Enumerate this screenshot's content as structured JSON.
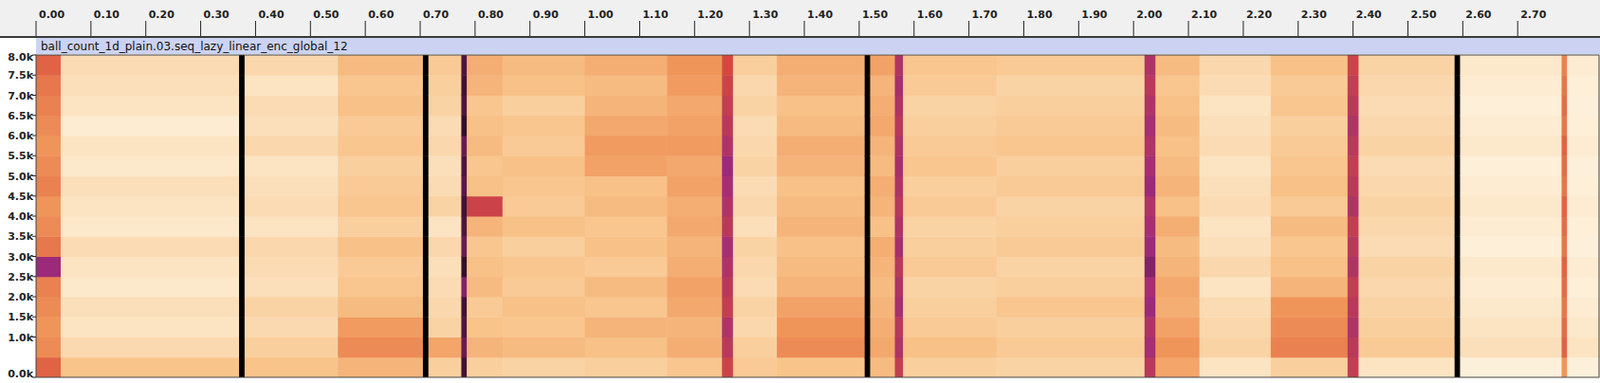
{
  "chart_data": {
    "type": "heatmap",
    "title": "ball_count_1d_plain.03.seq_lazy_linear_enc_global_12",
    "x": [
      0,
      0.045,
      0.37,
      0.38,
      0.55,
      0.705,
      0.715,
      0.775,
      0.785,
      0.85,
      1.0,
      1.15,
      1.25,
      1.27,
      1.35,
      1.51,
      1.52,
      1.565,
      1.58,
      1.75,
      2.02,
      2.04,
      2.12,
      2.25,
      2.39,
      2.41,
      2.585,
      2.595,
      2.78,
      2.79
    ],
    "y": [
      0,
      500,
      1000,
      1500,
      2000,
      2500,
      3000,
      3500,
      4000,
      4500,
      5000,
      5500,
      6000,
      6500,
      7000,
      7500
    ],
    "z": [
      [
        70,
        62,
        60,
        62,
        64,
        88,
        66,
        62,
        60,
        64,
        62,
        60,
        62,
        64,
        66,
        70
      ],
      [
        45,
        35,
        30,
        32,
        28,
        30,
        34,
        28,
        30,
        32,
        28,
        30,
        26,
        30,
        32,
        34
      ],
      [
        100,
        100,
        100,
        100,
        100,
        100,
        100,
        100,
        100,
        100,
        100,
        100,
        100,
        100,
        100,
        100
      ],
      [
        45,
        40,
        35,
        38,
        32,
        34,
        36,
        30,
        34,
        32,
        30,
        36,
        32,
        34,
        30,
        36
      ],
      [
        50,
        62,
        58,
        48,
        44,
        42,
        46,
        40,
        44,
        42,
        40,
        44,
        42,
        46,
        44,
        48
      ],
      [
        100,
        100,
        100,
        100,
        100,
        100,
        100,
        100,
        100,
        100,
        100,
        100,
        100,
        100,
        100,
        100
      ],
      [
        40,
        55,
        38,
        36,
        34,
        32,
        36,
        30,
        38,
        34,
        32,
        36,
        34,
        38,
        40,
        42
      ],
      [
        95,
        92,
        94,
        95,
        90,
        96,
        92,
        94,
        95,
        93,
        94,
        92,
        96,
        94,
        95,
        94
      ],
      [
        40,
        50,
        45,
        42,
        48,
        46,
        44,
        50,
        78,
        46,
        44,
        48,
        46,
        44,
        50,
        52
      ],
      [
        38,
        48,
        44,
        46,
        42,
        44,
        40,
        46,
        42,
        44,
        46,
        42,
        44,
        40,
        46,
        48
      ],
      [
        40,
        46,
        50,
        44,
        48,
        42,
        46,
        44,
        48,
        46,
        56,
        58,
        54,
        50,
        48,
        52
      ],
      [
        44,
        52,
        50,
        54,
        56,
        52,
        50,
        54,
        52,
        56,
        54,
        58,
        56,
        54,
        58,
        60
      ],
      [
        78,
        82,
        84,
        80,
        82,
        84,
        86,
        82,
        84,
        86,
        88,
        84,
        82,
        80,
        78,
        76
      ],
      [
        42,
        40,
        36,
        38,
        34,
        36,
        38,
        32,
        36,
        34,
        38,
        36,
        34,
        38,
        36,
        40
      ],
      [
        45,
        62,
        60,
        56,
        50,
        48,
        46,
        50,
        48,
        46,
        50,
        52,
        48,
        46,
        50,
        52
      ],
      [
        100,
        100,
        100,
        100,
        100,
        100,
        100,
        100,
        100,
        100,
        100,
        100,
        100,
        100,
        100,
        100
      ],
      [
        48,
        54,
        52,
        50,
        48,
        50,
        52,
        46,
        50,
        52,
        48,
        50,
        54,
        52,
        50,
        56
      ],
      [
        80,
        84,
        82,
        86,
        84,
        82,
        86,
        84,
        82,
        84,
        86,
        84,
        82,
        84,
        86,
        84
      ],
      [
        40,
        46,
        42,
        40,
        38,
        42,
        40,
        38,
        42,
        40,
        44,
        42,
        40,
        38,
        42,
        44
      ],
      [
        38,
        42,
        40,
        44,
        40,
        38,
        42,
        40,
        38,
        42,
        40,
        44,
        42,
        40,
        38,
        42
      ],
      [
        82,
        86,
        84,
        88,
        86,
        90,
        88,
        86,
        84,
        88,
        86,
        84,
        86,
        84,
        82,
        84
      ],
      [
        55,
        60,
        56,
        52,
        54,
        50,
        48,
        52,
        46,
        50,
        48,
        46,
        48,
        46,
        44,
        48
      ],
      [
        30,
        38,
        36,
        34,
        30,
        36,
        32,
        30,
        34,
        32,
        30,
        34,
        32,
        30,
        34,
        36
      ],
      [
        40,
        64,
        62,
        60,
        50,
        46,
        44,
        48,
        42,
        46,
        44,
        42,
        40,
        44,
        42,
        46
      ],
      [
        80,
        82,
        84,
        82,
        80,
        84,
        82,
        80,
        84,
        82,
        80,
        82,
        84,
        82,
        80,
        78
      ],
      [
        30,
        42,
        40,
        38,
        36,
        38,
        34,
        36,
        38,
        36,
        34,
        38,
        36,
        34,
        36,
        38
      ],
      [
        100,
        100,
        100,
        100,
        100,
        100,
        100,
        100,
        100,
        100,
        100,
        100,
        100,
        100,
        100,
        100
      ],
      [
        22,
        32,
        30,
        28,
        26,
        28,
        24,
        26,
        28,
        26,
        24,
        28,
        26,
        24,
        26,
        28
      ],
      [
        60,
        70,
        68,
        66,
        68,
        70,
        66,
        68,
        70,
        66,
        68,
        70,
        66,
        68,
        66,
        64
      ],
      [
        22,
        30,
        28,
        26,
        24,
        26,
        22,
        24,
        26,
        24,
        22,
        26,
        24,
        22,
        24,
        26
      ]
    ],
    "xlim": [
      0,
      2.85
    ],
    "ylim": [
      0,
      8000
    ],
    "color_range": [
      0,
      100
    ],
    "xticks": [
      {
        "value": 0,
        "label": "0.00"
      },
      {
        "value": 0.1,
        "label": "0.10"
      },
      {
        "value": 0.2,
        "label": "0.20"
      },
      {
        "value": 0.3,
        "label": "0.30"
      },
      {
        "value": 0.4,
        "label": "0.40"
      },
      {
        "value": 0.5,
        "label": "0.50"
      },
      {
        "value": 0.6,
        "label": "0.60"
      },
      {
        "value": 0.7,
        "label": "0.70"
      },
      {
        "value": 0.8,
        "label": "0.80"
      },
      {
        "value": 0.9,
        "label": "0.90"
      },
      {
        "value": 1,
        "label": "1.00"
      },
      {
        "value": 1.1,
        "label": "1.10"
      },
      {
        "value": 1.2,
        "label": "1.20"
      },
      {
        "value": 1.3,
        "label": "1.30"
      },
      {
        "value": 1.4,
        "label": "1.40"
      },
      {
        "value": 1.5,
        "label": "1.50"
      },
      {
        "value": 1.6,
        "label": "1.60"
      },
      {
        "value": 1.7,
        "label": "1.70"
      },
      {
        "value": 1.8,
        "label": "1.80"
      },
      {
        "value": 1.9,
        "label": "1.90"
      },
      {
        "value": 2,
        "label": "2.00"
      },
      {
        "value": 2.1,
        "label": "2.10"
      },
      {
        "value": 2.2,
        "label": "2.20"
      },
      {
        "value": 2.3,
        "label": "2.30"
      },
      {
        "value": 2.4,
        "label": "2.40"
      },
      {
        "value": 2.5,
        "label": "2.50"
      },
      {
        "value": 2.6,
        "label": "2.60"
      },
      {
        "value": 2.7,
        "label": "2.70"
      }
    ],
    "yticks": [
      {
        "value": 0,
        "label": "0.0k"
      },
      {
        "value": 1000,
        "label": "1.0k"
      },
      {
        "value": 1500,
        "label": "1.5k"
      },
      {
        "value": 2000,
        "label": "2.0k"
      },
      {
        "value": 2500,
        "label": "2.5k"
      },
      {
        "value": 3000,
        "label": "3.0k"
      },
      {
        "value": 3500,
        "label": "3.5k"
      },
      {
        "value": 4000,
        "label": "4.0k"
      },
      {
        "value": 4500,
        "label": "4.5k"
      },
      {
        "value": 5000,
        "label": "5.0k"
      },
      {
        "value": 5500,
        "label": "5.5k"
      },
      {
        "value": 6000,
        "label": "6.0k"
      },
      {
        "value": 6500,
        "label": "6.5k"
      },
      {
        "value": 7000,
        "label": "7.0k"
      },
      {
        "value": 7500,
        "label": "7.5k"
      },
      {
        "value": 8000,
        "label": "8.0k"
      }
    ]
  }
}
